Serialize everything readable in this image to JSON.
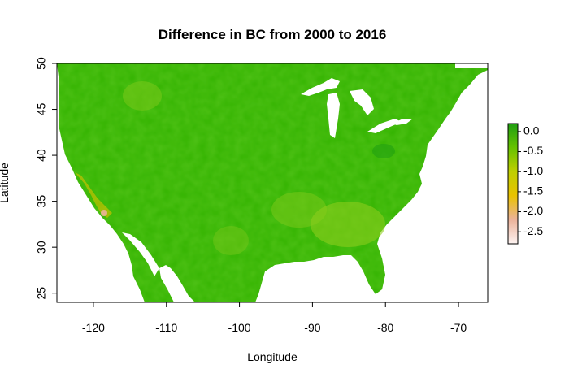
{
  "chart_data": {
    "type": "heatmap",
    "title": "Difference in BC from 2000 to 2016",
    "xlabel": "Longitude",
    "ylabel": "Latitude",
    "xlim": [
      -125,
      -66
    ],
    "ylim": [
      24,
      50
    ],
    "x_ticks": [
      -120,
      -110,
      -100,
      -90,
      -80,
      -70
    ],
    "y_ticks": [
      25,
      30,
      35,
      40,
      45,
      50
    ],
    "x_tick_labels": [
      "-120",
      "-110",
      "-100",
      "-90",
      "-80",
      "-70"
    ],
    "y_tick_labels": [
      "25",
      "30",
      "35",
      "40",
      "45",
      "50"
    ],
    "legend": {
      "position": "right",
      "ticks": [
        0.0,
        -0.5,
        -1.0,
        -1.5,
        -2.0,
        -2.5
      ],
      "tick_labels": [
        "0.0",
        "-0.5",
        "-1.0",
        "-1.5",
        "-2.0",
        "-2.5"
      ],
      "range": [
        -2.8,
        0.2
      ],
      "colors": [
        "#fdf3f2",
        "#ebb29a",
        "#e9c200",
        "#bfcf00",
        "#66c200",
        "#1f9e12"
      ]
    },
    "region": "contiguous United States",
    "typical_value_range": [
      -0.5,
      0.0
    ],
    "colors": {
      "dominant": "#33b300",
      "lighter": "#7ac81a",
      "darker": "#1f9e12",
      "coastal_extremes": "#e9c200"
    }
  }
}
